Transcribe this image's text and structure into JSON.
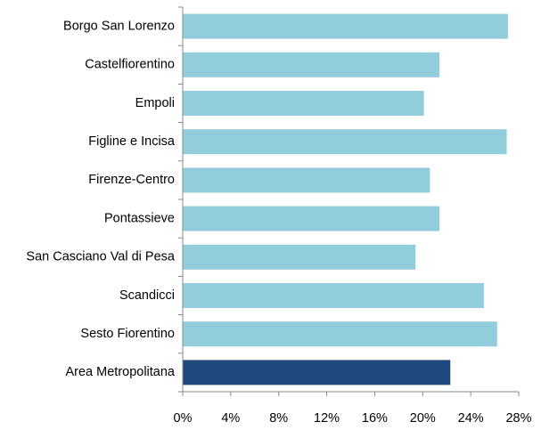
{
  "chart_data": {
    "type": "hbar",
    "categories": [
      "Borgo San Lorenzo",
      "Castelfiorentino",
      "Empoli",
      "Figline e Incisa",
      "Firenze-Centro",
      "Pontassieve",
      "San Casciano Val di Pesa",
      "Scandicci",
      "Sesto Fiorentino",
      "Area Metropolitana"
    ],
    "values": [
      27.1,
      21.4,
      20.1,
      27.0,
      20.6,
      21.4,
      19.4,
      25.1,
      26.2,
      22.3
    ],
    "colors": [
      "#92cddc",
      "#92cddc",
      "#92cddc",
      "#92cddc",
      "#92cddc",
      "#92cddc",
      "#92cddc",
      "#92cddc",
      "#92cddc",
      "#1f497d"
    ],
    "xlim": [
      0,
      28
    ],
    "xticks": [
      {
        "value": 0,
        "label": "0%"
      },
      {
        "value": 4,
        "label": "4%"
      },
      {
        "value": 8,
        "label": "8%"
      },
      {
        "value": 12,
        "label": "12%"
      },
      {
        "value": 16,
        "label": "16%"
      },
      {
        "value": 20,
        "label": "20%"
      },
      {
        "value": 24,
        "label": "24%"
      },
      {
        "value": 28,
        "label": "28%"
      }
    ]
  }
}
